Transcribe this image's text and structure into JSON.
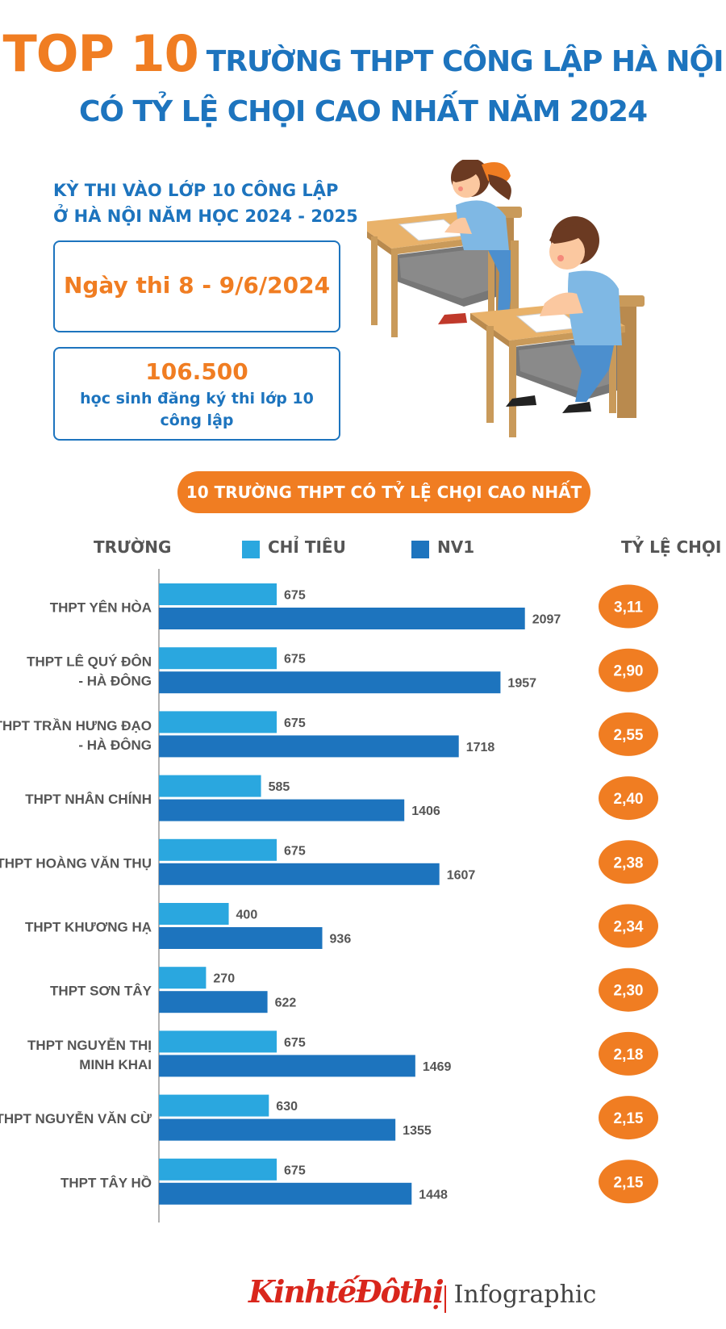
{
  "title": {
    "top10": "TOP 10",
    "line1": "TRƯỜNG THPT CÔNG LẬP HÀ NỘI",
    "line2": "CÓ TỶ LỆ CHỌI CAO NHẤT NĂM 2024"
  },
  "exam": {
    "heading_line1": "KỲ THI VÀO LỚP 10 CÔNG LẬP",
    "heading_line2": "Ở HÀ NỘI NĂM HỌC 2024 - 2025",
    "date": "Ngày thi 8 - 9/6/2024",
    "registrants": "106.500",
    "registrants_text_line1": "học sinh đăng ký thi lớp 10",
    "registrants_text_line2": "công lập"
  },
  "section_title": "10 TRƯỜNG THPT CÓ TỶ LỆ CHỌI CAO NHẤT",
  "colors": {
    "orange": "#f07d22",
    "blue": "#1d74be",
    "light_blue": "#2aa7df",
    "footer_red": "#d9261c"
  },
  "chart_data": {
    "type": "bar",
    "orientation": "horizontal",
    "column_header_school": "TRƯỜNG",
    "column_header_ratio": "TỶ LỆ CHỌI",
    "categories": [
      [
        "THPT YÊN HÒA"
      ],
      [
        "THPT LÊ QUÝ ĐÔN",
        "- HÀ ĐÔNG"
      ],
      [
        "THPT TRẦN HƯNG ĐẠO",
        "- HÀ ĐÔNG"
      ],
      [
        "THPT NHÂN CHÍNH"
      ],
      [
        "THPT HOÀNG VĂN THỤ"
      ],
      [
        "THPT KHƯƠNG HẠ"
      ],
      [
        "THPT SƠN TÂY"
      ],
      [
        "THPT NGUYỄN THỊ",
        "MINH KHAI"
      ],
      [
        "THPT NGUYỄN VĂN CỪ"
      ],
      [
        "THPT TÂY HỒ"
      ]
    ],
    "series": [
      {
        "name": "CHỈ TIÊU",
        "color": "#2aa7df",
        "values": [
          675,
          675,
          675,
          585,
          675,
          400,
          270,
          675,
          630,
          675
        ]
      },
      {
        "name": "NV1",
        "color": "#1d74be",
        "values": [
          2097,
          1957,
          1718,
          1406,
          1607,
          936,
          622,
          1469,
          1355,
          1448
        ]
      }
    ],
    "ratios": [
      "3,11",
      "2,90",
      "2,55",
      "2,40",
      "2,38",
      "2,34",
      "2,30",
      "2,18",
      "2,15",
      "2,15"
    ],
    "xlim": [
      0,
      2200
    ]
  },
  "footer": {
    "brand_left": "Kinhtế",
    "brand_right": "Đôthị",
    "label": "Infographic"
  }
}
